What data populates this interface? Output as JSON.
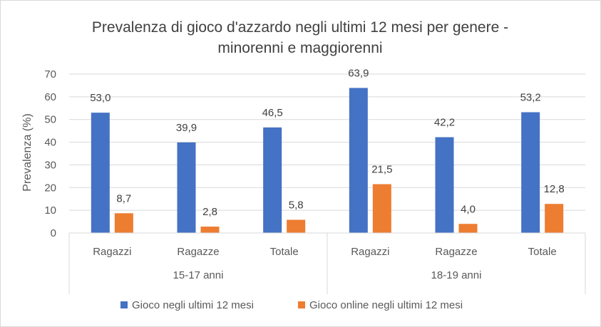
{
  "chart_data": {
    "type": "bar",
    "title_line1": "Prevalenza di gioco d'azzardo negli ultimi 12 mesi per genere -",
    "title_line2": "minorenni e maggiorenni",
    "ylabel": "Prevalenza (%)",
    "xlabel": "",
    "ylim": [
      0,
      70
    ],
    "ytick_step": 10,
    "yticks": [
      "0",
      "10",
      "20",
      "30",
      "40",
      "50",
      "60",
      "70"
    ],
    "grid": true,
    "legend_position": "bottom",
    "groups": [
      {
        "label": "15-17 anni",
        "categories": [
          "Ragazzi",
          "Ragazze",
          "Totale"
        ]
      },
      {
        "label": "18-19 anni",
        "categories": [
          "Ragazzi",
          "Ragazze",
          "Totale"
        ]
      }
    ],
    "categories": [
      "Ragazzi",
      "Ragazze",
      "Totale",
      "Ragazzi",
      "Ragazze",
      "Totale"
    ],
    "series": [
      {
        "name": "Gioco negli ultimi 12 mesi",
        "color": "#4472c4",
        "values": [
          53.0,
          39.9,
          46.5,
          63.9,
          42.2,
          53.2
        ],
        "labels": [
          "53,0",
          "39,9",
          "46,5",
          "63,9",
          "42,2",
          "53,2"
        ]
      },
      {
        "name": "Gioco online negli ultimi 12 mesi",
        "color": "#ed7d31",
        "values": [
          8.7,
          2.8,
          5.8,
          21.5,
          4.0,
          12.8
        ],
        "labels": [
          "8,7",
          "2,8",
          "5,8",
          "21,5",
          "4,0",
          "12,8"
        ]
      }
    ]
  }
}
